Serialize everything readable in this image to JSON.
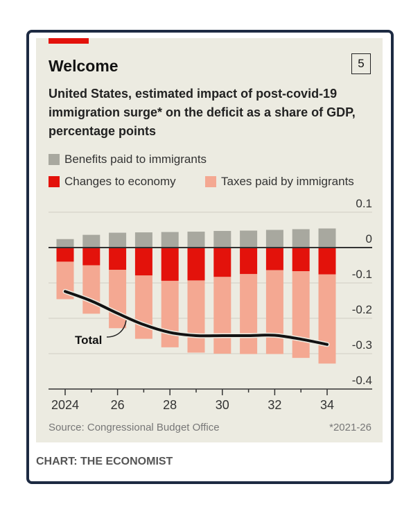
{
  "title": "Welcome",
  "badge": "5",
  "subtitle": "United States, estimated impact of post-covid-19 immigration surge* on the deficit as a share of GDP, percentage points",
  "source": "Source: Congressional Budget Office",
  "footnote": "*2021-26",
  "credit": "CHART: THE ECONOMIST",
  "colors": {
    "benefits": "#a8a89f",
    "economy": "#e3120b",
    "taxes": "#f4a892",
    "total": "#121212",
    "accent": "#e3120b"
  },
  "chart_data": {
    "type": "bar",
    "stacked": true,
    "title": "Welcome",
    "ylabel": "percentage points of GDP",
    "ylim": [
      -0.4,
      0.1
    ],
    "yticks": [
      "0.1",
      "0",
      "-0.1",
      "-0.2",
      "-0.3",
      "-0.4"
    ],
    "ytick_values": [
      0.1,
      0,
      -0.1,
      -0.2,
      -0.3,
      -0.4
    ],
    "categories": [
      2024,
      2025,
      2026,
      2027,
      2028,
      2029,
      2030,
      2031,
      2032,
      2033,
      2034
    ],
    "xtick_labels": [
      "2024",
      "26",
      "28",
      "30",
      "32",
      "34"
    ],
    "series": [
      {
        "name": "Benefits paid to immigrants",
        "values": [
          0.024,
          0.036,
          0.042,
          0.043,
          0.044,
          0.045,
          0.047,
          0.048,
          0.05,
          0.052,
          0.054
        ]
      },
      {
        "name": "Changes to economy",
        "values": [
          -0.04,
          -0.05,
          -0.063,
          -0.079,
          -0.094,
          -0.093,
          -0.083,
          -0.075,
          -0.064,
          -0.067,
          -0.076
        ]
      },
      {
        "name": "Taxes paid by immigrants",
        "values": [
          -0.106,
          -0.137,
          -0.165,
          -0.179,
          -0.188,
          -0.204,
          -0.217,
          -0.226,
          -0.237,
          -0.245,
          -0.252
        ]
      }
    ],
    "line": {
      "name": "Total",
      "values": [
        -0.124,
        -0.151,
        -0.186,
        -0.218,
        -0.24,
        -0.249,
        -0.249,
        -0.249,
        -0.248,
        -0.259,
        -0.274
      ]
    },
    "grid": true
  }
}
